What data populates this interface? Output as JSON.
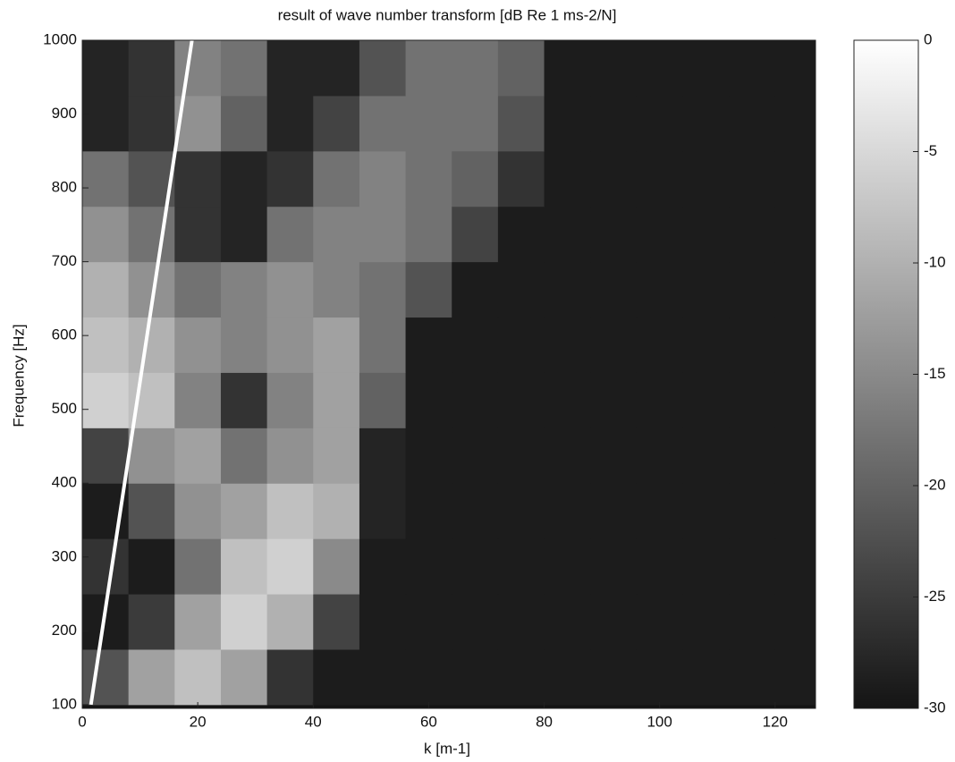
{
  "chart_data": {
    "type": "heatmap",
    "title": "result of wave number transform [dB Re 1 ms-2/N]",
    "x_label": "k [m-1]",
    "y_label": "Frequency [Hz]",
    "xlim": [
      0,
      127
    ],
    "ylim": [
      95,
      1000
    ],
    "xticks": [
      0,
      20,
      40,
      60,
      80,
      100,
      120
    ],
    "yticks": [
      100,
      200,
      300,
      400,
      500,
      600,
      700,
      800,
      900,
      1000
    ],
    "xbins": [
      0,
      8,
      16,
      24,
      32,
      40,
      48,
      56,
      64,
      72,
      80,
      88,
      96,
      104,
      112,
      120,
      127
    ],
    "ybins": [
      100,
      175,
      250,
      325,
      400,
      475,
      550,
      625,
      700,
      775,
      850,
      925,
      1000
    ],
    "z": [
      [
        -22,
        -12,
        -8,
        -12,
        -26,
        -29,
        -29,
        -29,
        -29,
        -29,
        -29,
        -29,
        -29,
        -29,
        -29,
        -29
      ],
      [
        -29,
        -25,
        -12,
        -6,
        -10,
        -24,
        -29,
        -29,
        -29,
        -29,
        -29,
        -29,
        -29,
        -29,
        -29,
        -29
      ],
      [
        -26,
        -29,
        -18,
        -8,
        -6,
        -15,
        -29,
        -29,
        -29,
        -29,
        -29,
        -29,
        -29,
        -29,
        -29,
        -29
      ],
      [
        -29,
        -22,
        -14,
        -12,
        -8,
        -10,
        -28,
        -29,
        -29,
        -29,
        -29,
        -29,
        -29,
        -29,
        -29,
        -29
      ],
      [
        -24,
        -14,
        -12,
        -18,
        -14,
        -12,
        -28,
        -29,
        -29,
        -29,
        -29,
        -29,
        -29,
        -29,
        -29,
        -29
      ],
      [
        -6,
        -8,
        -16,
        -26,
        -16,
        -12,
        -20,
        -29,
        -29,
        -29,
        -29,
        -29,
        -29,
        -29,
        -29,
        -29
      ],
      [
        -8,
        -10,
        -14,
        -16,
        -14,
        -12,
        -18,
        -29,
        -29,
        -29,
        -29,
        -29,
        -29,
        -29,
        -29,
        -29
      ],
      [
        -10,
        -14,
        -18,
        -16,
        -14,
        -16,
        -18,
        -22,
        -29,
        -29,
        -29,
        -29,
        -29,
        -29,
        -29,
        -29
      ],
      [
        -14,
        -18,
        -26,
        -28,
        -18,
        -16,
        -16,
        -18,
        -24,
        -29,
        -29,
        -29,
        -29,
        -29,
        -29,
        -29
      ],
      [
        -18,
        -22,
        -26,
        -28,
        -26,
        -18,
        -16,
        -18,
        -20,
        -26,
        -29,
        -29,
        -29,
        -29,
        -29,
        -29
      ],
      [
        -28,
        -26,
        -14,
        -20,
        -28,
        -24,
        -18,
        -18,
        -18,
        -22,
        -29,
        -29,
        -29,
        -29,
        -29,
        -29
      ],
      [
        -28,
        -26,
        -16,
        -18,
        -28,
        -28,
        -22,
        -18,
        -18,
        -20,
        -29,
        -29,
        -29,
        -29,
        -29,
        -29
      ]
    ],
    "clim": [
      -30,
      0
    ],
    "cticks": [
      0,
      -5,
      -10,
      -15,
      -20,
      -25,
      -30
    ],
    "colormap": "gray",
    "line": {
      "x": [
        1.5,
        19
      ],
      "y": [
        100,
        1000
      ],
      "color": "#ffffff"
    }
  }
}
